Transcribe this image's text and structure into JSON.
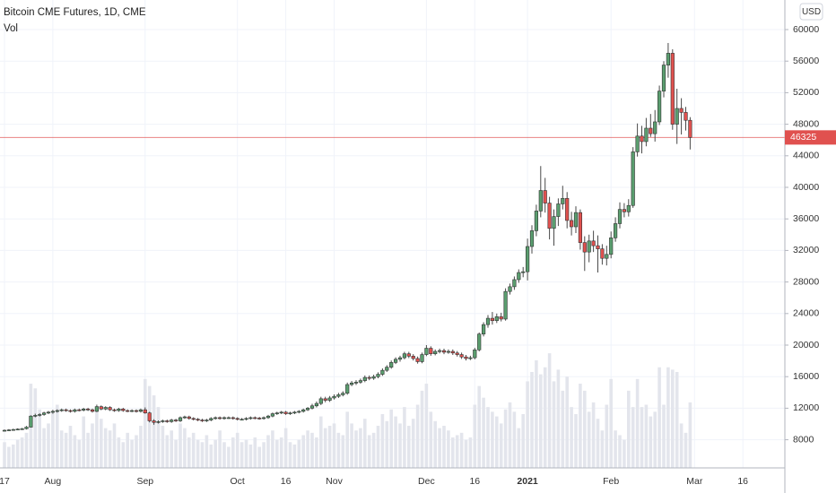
{
  "chart_data": {
    "type": "candlestick",
    "title": "Bitcoin CME Futures, 1D, CME",
    "volume_label": "Vol",
    "currency": "USD",
    "grid": true,
    "up_color": "#5a9e6f",
    "down_color": "#e0514f",
    "volume_color": "#e3e5ec",
    "ylim": [
      4432,
      63750
    ],
    "yticks": [
      8000,
      12000,
      16000,
      20000,
      24000,
      28000,
      32000,
      36000,
      40000,
      44000,
      48000,
      52000,
      56000,
      60000
    ],
    "y2lim": [
      0,
      20000
    ],
    "categories": [
      "17",
      null,
      null,
      null,
      null,
      null,
      null,
      null,
      null,
      null,
      null,
      "Aug",
      null,
      null,
      null,
      null,
      null,
      null,
      null,
      null,
      null,
      null,
      null,
      null,
      null,
      null,
      null,
      null,
      null,
      null,
      null,
      null,
      "Sep",
      null,
      null,
      null,
      null,
      null,
      null,
      null,
      null,
      null,
      null,
      null,
      null,
      null,
      null,
      null,
      null,
      null,
      null,
      null,
      null,
      "Oct",
      null,
      null,
      null,
      null,
      null,
      null,
      null,
      null,
      null,
      null,
      "16",
      null,
      null,
      null,
      null,
      null,
      null,
      null,
      null,
      null,
      null,
      "Nov",
      null,
      null,
      null,
      null,
      null,
      null,
      null,
      null,
      null,
      null,
      null,
      null,
      null,
      null,
      null,
      null,
      null,
      null,
      null,
      null,
      "Dec",
      null,
      null,
      null,
      null,
      null,
      null,
      null,
      null,
      null,
      null,
      "16",
      null,
      null,
      null,
      null,
      null,
      null,
      null,
      null,
      null,
      null,
      null,
      "2021",
      null,
      null,
      null,
      null,
      null,
      null,
      null,
      null,
      null,
      null,
      null,
      null,
      null,
      null,
      null,
      null,
      null,
      null,
      "Feb",
      null,
      null,
      null,
      null,
      null,
      null,
      null,
      null,
      null,
      null,
      null,
      null,
      null,
      null,
      null,
      null,
      null,
      null,
      "Mar",
      null,
      null,
      null,
      null,
      null,
      null,
      null,
      null,
      null,
      null,
      "16",
      null,
      null
    ],
    "open": [
      9150,
      9200,
      9250,
      9300,
      9350,
      9400,
      9600,
      11000,
      11100,
      11200,
      11400,
      11500,
      11600,
      11700,
      11800,
      11700,
      11600,
      11800,
      11750,
      11900,
      11800,
      11600,
      12200,
      11900,
      12100,
      11800,
      11700,
      11900,
      11700,
      11650,
      11700,
      11600,
      11800,
      11400,
      10400,
      10200,
      10300,
      10400,
      10300,
      10500,
      10400,
      10800,
      10900,
      10700,
      10600,
      10500,
      10400,
      10500,
      10700,
      10800,
      10700,
      10800,
      10800,
      10700,
      10600,
      10600,
      10700,
      10800,
      10750,
      10700,
      10800,
      11000,
      11300,
      11400,
      11500,
      11300,
      11400,
      11500,
      11600,
      11800,
      12000,
      12300,
      12600,
      13200,
      13000,
      13300,
      13500,
      13700,
      13900,
      15000,
      15200,
      15300,
      15500,
      15900,
      15800,
      16000,
      16300,
      16800,
      17200,
      17800,
      18200,
      18400,
      18900,
      18600,
      18300,
      17900,
      18800,
      19600,
      18900,
      19200,
      19300,
      19100,
      19200,
      19000,
      18800,
      18500,
      18300,
      18400,
      19400,
      21400,
      22600,
      23400,
      23100,
      23600,
      23300,
      26800,
      27400,
      28300,
      29200,
      29300,
      32500,
      34500,
      37000,
      39600,
      38000,
      34800,
      36300,
      37900,
      38600,
      35800,
      35000,
      36800,
      33000,
      31800,
      33200,
      32600,
      32200,
      31000,
      31500,
      33600,
      35400,
      37200,
      36900,
      37700,
      44500,
      46500,
      45800,
      47500,
      46800,
      48300,
      52200,
      55500,
      57000,
      48000,
      50000,
      49500,
      48500,
      null,
      null,
      null,
      null,
      null,
      null,
      null,
      null,
      null,
      null,
      null,
      null,
      null,
      null
    ],
    "high": [
      9300,
      9350,
      9400,
      9450,
      9500,
      9750,
      11100,
      11300,
      11350,
      11550,
      11650,
      11800,
      11850,
      11950,
      11950,
      11850,
      11950,
      11950,
      12050,
      12050,
      11950,
      12450,
      12350,
      12250,
      12250,
      11950,
      12050,
      12050,
      11850,
      11850,
      11850,
      11950,
      12100,
      11550,
      10600,
      10450,
      10550,
      10550,
      10650,
      10650,
      10950,
      11050,
      11050,
      10850,
      10750,
      10650,
      10650,
      10850,
      10950,
      10950,
      10950,
      10950,
      10950,
      10850,
      10750,
      10850,
      10950,
      10950,
      10900,
      10950,
      11150,
      11450,
      11550,
      11650,
      11650,
      11550,
      11650,
      11750,
      11950,
      12150,
      12550,
      12850,
      13450,
      13450,
      13550,
      13750,
      13950,
      14150,
      15250,
      15450,
      15550,
      15750,
      16150,
      16150,
      16250,
      16550,
      17050,
      17450,
      18050,
      18450,
      18650,
      19150,
      19150,
      18850,
      18550,
      19050,
      20000,
      19850,
      19450,
      19550,
      19550,
      19450,
      19450,
      19250,
      19050,
      18750,
      18650,
      19650,
      21600,
      22900,
      23800,
      24200,
      24000,
      24100,
      27200,
      27800,
      28700,
      29600,
      29900,
      33500,
      35200,
      37800,
      42700,
      41200,
      38800,
      37200,
      38600,
      40200,
      39400,
      36900,
      37600,
      37200,
      33800,
      34000,
      34500,
      33900,
      32800,
      32600,
      34400,
      36200,
      38100,
      38000,
      38500,
      45100,
      48100,
      47800,
      48800,
      49300,
      49800,
      52900,
      56000,
      58300,
      57500,
      52500,
      51300,
      50200,
      48900,
      null,
      null,
      null,
      null,
      null,
      null,
      null,
      null,
      null,
      null,
      null,
      null,
      null,
      null
    ],
    "low": [
      9050,
      9100,
      9150,
      9200,
      9250,
      9300,
      9550,
      10850,
      10950,
      11050,
      11250,
      11300,
      11450,
      11550,
      11550,
      11450,
      11450,
      11600,
      11600,
      11650,
      11450,
      11500,
      11750,
      11750,
      11650,
      11550,
      11550,
      11550,
      11500,
      11500,
      11450,
      11450,
      11300,
      10200,
      9900,
      10050,
      10150,
      10150,
      10150,
      10250,
      10250,
      10650,
      10550,
      10450,
      10350,
      10250,
      10250,
      10350,
      10550,
      10550,
      10550,
      10650,
      10550,
      10450,
      10450,
      10450,
      10550,
      10600,
      10550,
      10550,
      10650,
      10850,
      11150,
      11250,
      11150,
      11150,
      11250,
      11350,
      11450,
      11650,
      11850,
      12100,
      12400,
      12750,
      12800,
      13100,
      13300,
      13500,
      13700,
      14800,
      14950,
      15100,
      15300,
      15550,
      15600,
      15800,
      16100,
      16600,
      17000,
      17600,
      17900,
      18200,
      18350,
      18050,
      17650,
      17700,
      18600,
      18650,
      18700,
      18950,
      18850,
      18900,
      18750,
      18550,
      18250,
      18050,
      18100,
      18200,
      19200,
      21100,
      22200,
      22600,
      22800,
      23000,
      23100,
      26400,
      27000,
      27900,
      28600,
      28200,
      31600,
      33800,
      36200,
      36800,
      33400,
      32600,
      35100,
      37200,
      34800,
      33900,
      34200,
      32100,
      29400,
      30500,
      31800,
      29200,
      30200,
      30100,
      31000,
      33100,
      34800,
      36200,
      36300,
      37400,
      43900,
      44300,
      45200,
      46400,
      45800,
      47900,
      51400,
      53900,
      47300,
      45500,
      46700,
      47200,
      44800,
      null,
      null,
      null,
      null,
      null,
      null,
      null,
      null,
      null,
      null,
      null,
      null,
      null,
      null
    ],
    "close": [
      9200,
      9250,
      9300,
      9350,
      9400,
      9600,
      11000,
      11100,
      11200,
      11400,
      11500,
      11600,
      11700,
      11800,
      11700,
      11600,
      11800,
      11750,
      11900,
      11800,
      11600,
      12200,
      11900,
      12100,
      11800,
      11700,
      11900,
      11700,
      11650,
      11700,
      11600,
      11800,
      11400,
      10400,
      10200,
      10300,
      10400,
      10300,
      10500,
      10400,
      10800,
      10900,
      10700,
      10600,
      10500,
      10400,
      10500,
      10700,
      10800,
      10700,
      10800,
      10800,
      10700,
      10600,
      10600,
      10700,
      10800,
      10750,
      10700,
      10800,
      11000,
      11300,
      11400,
      11500,
      11300,
      11400,
      11500,
      11600,
      11800,
      12000,
      12300,
      12600,
      13200,
      13000,
      13300,
      13500,
      13700,
      13900,
      15000,
      15200,
      15300,
      15500,
      15900,
      15800,
      16000,
      16300,
      16800,
      17200,
      17800,
      18200,
      18400,
      18900,
      18600,
      18300,
      17900,
      18800,
      19600,
      18900,
      19200,
      19300,
      19100,
      19200,
      19000,
      18800,
      18500,
      18300,
      18400,
      19400,
      21400,
      22600,
      23400,
      23100,
      23600,
      23300,
      26800,
      27400,
      28300,
      29200,
      29300,
      32500,
      34500,
      37000,
      39600,
      38000,
      34800,
      36300,
      37900,
      38600,
      35800,
      35000,
      36800,
      33000,
      31800,
      33200,
      32600,
      32200,
      31000,
      31500,
      33600,
      35400,
      37200,
      36900,
      37700,
      44500,
      46500,
      45800,
      47500,
      46800,
      48300,
      52200,
      55500,
      57000,
      48000,
      50000,
      49500,
      48500,
      46325,
      null,
      null,
      null,
      null,
      null,
      null,
      null,
      null,
      null,
      null,
      null,
      null,
      null,
      null
    ],
    "volume": [
      1100,
      900,
      1000,
      1200,
      1300,
      1500,
      3600,
      3400,
      2500,
      1700,
      1900,
      2400,
      2700,
      1600,
      1500,
      1800,
      1400,
      1200,
      2200,
      1500,
      1900,
      2600,
      2100,
      1700,
      1600,
      1900,
      1300,
      1100,
      1500,
      1200,
      1400,
      1800,
      3800,
      3500,
      3100,
      2600,
      1800,
      1400,
      1600,
      1200,
      1900,
      1700,
      1300,
      1500,
      1200,
      1100,
      1400,
      1000,
      1200,
      1600,
      1100,
      900,
      1300,
      1500,
      1100,
      1200,
      1000,
      1300,
      900,
      1100,
      1400,
      1600,
      1200,
      1300,
      1700,
      1100,
      1000,
      1200,
      1400,
      1600,
      1500,
      1300,
      2200,
      1700,
      1800,
      1900,
      1500,
      1400,
      2400,
      1900,
      1600,
      1700,
      2100,
      1400,
      1500,
      1800,
      2300,
      2000,
      2500,
      2200,
      1900,
      2600,
      1800,
      2100,
      2700,
      3300,
      3600,
      2400,
      2000,
      1700,
      1800,
      1600,
      1300,
      1400,
      1500,
      1200,
      1300,
      2700,
      3500,
      3000,
      2600,
      2400,
      2200,
      1900,
      2500,
      2800,
      2400,
      1700,
      2300,
      3700,
      4100,
      4600,
      4000,
      4300,
      4900,
      3700,
      4200,
      3300,
      3900,
      2600,
      2300,
      3600,
      3300,
      2400,
      2800,
      2100,
      1600,
      2700,
      3800,
      1600,
      1400,
      1200,
      3300,
      2600,
      3800,
      2600,
      2700,
      2200,
      2400,
      4300,
      2700,
      4300,
      4200,
      4100,
      1900,
      1500,
      2800,
      null,
      null,
      null,
      null,
      null,
      null,
      null,
      null,
      null,
      null,
      null,
      null,
      null,
      null
    ]
  }
}
